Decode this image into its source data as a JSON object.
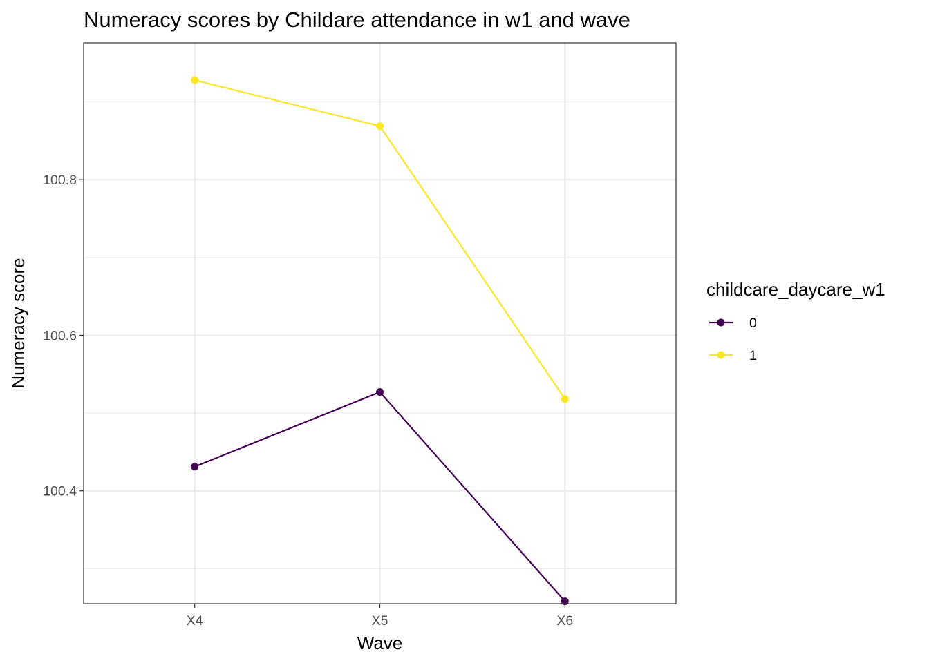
{
  "chart_data": {
    "type": "line",
    "title": "Numeracy scores by Childare attendance in w1 and wave",
    "xlabel": "Wave",
    "ylabel": "Numeracy score",
    "categories": [
      "X4",
      "X5",
      "X6"
    ],
    "ylim": [
      100.255,
      100.976
    ],
    "y_ticks": [
      100.4,
      100.6,
      100.8
    ],
    "y_tick_labels": [
      "100.4",
      "100.6",
      "100.8"
    ],
    "grid": true,
    "legend": {
      "title": "childcare_daycare_w1",
      "position": "right"
    },
    "series": [
      {
        "name": "0",
        "color": "#440154",
        "values": [
          100.431,
          100.527,
          100.258
        ]
      },
      {
        "name": "1",
        "color": "#FDE725",
        "values": [
          100.928,
          100.869,
          100.518
        ]
      }
    ]
  }
}
